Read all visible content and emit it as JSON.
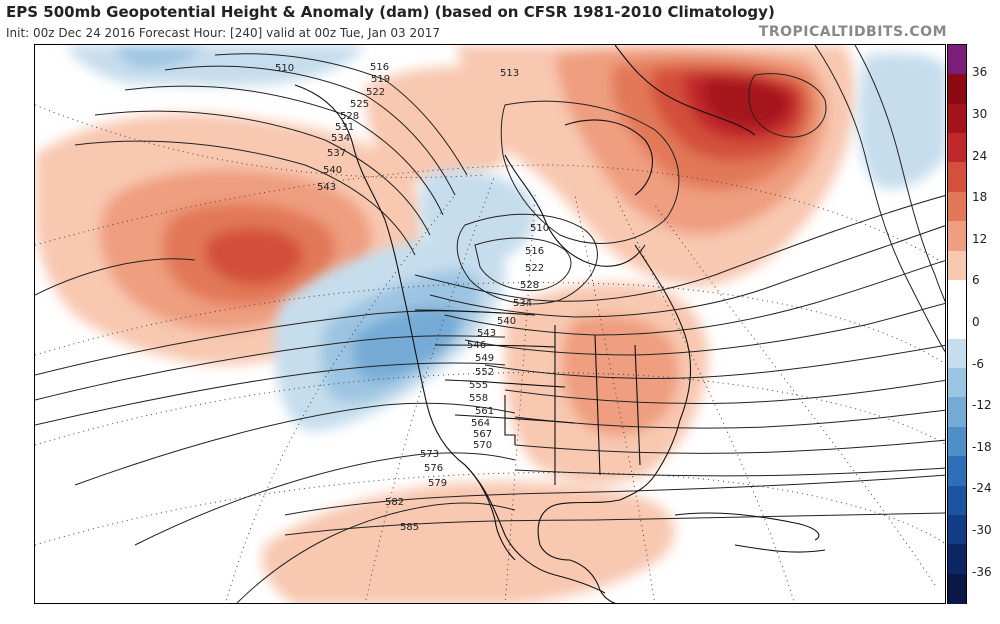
{
  "header": {
    "title": "EPS 500mb Geopotential Height & Anomaly (dam) (based on CFSR 1981-2010 Climatology)",
    "subtitle": "Init: 00z Dec 24 2016   Forecast Hour: [240]   valid at 00z Tue, Jan 03 2017",
    "brand": "TROPICALTIDBITS.COM"
  },
  "colorbar": {
    "ticks": [
      "36",
      "30",
      "24",
      "18",
      "12",
      "6",
      "0",
      "-6",
      "-12",
      "-18",
      "-24",
      "-30",
      "-36"
    ],
    "colors": [
      "#7b1e7a",
      "#8b0a14",
      "#a5141c",
      "#c0282b",
      "#d3503b",
      "#e27858",
      "#ef9e7f",
      "#f8c8b1",
      "#ffffff",
      "#ffffff",
      "#c6dded",
      "#9cc5e2",
      "#74abd6",
      "#4e8fc8",
      "#2e70b6",
      "#1b54a0",
      "#123c85",
      "#0c2764",
      "#0a1747"
    ]
  },
  "map": {
    "height_contour_labels": [
      "510",
      "513",
      "516",
      "519",
      "522",
      "525",
      "528",
      "531",
      "534",
      "537",
      "540",
      "543",
      "546",
      "549",
      "552",
      "555",
      "558",
      "561",
      "564",
      "567",
      "570",
      "573",
      "576",
      "579",
      "582",
      "585"
    ],
    "label_list_nw": [
      "510",
      "516",
      "519",
      "522",
      "525",
      "528",
      "531",
      "534",
      "537",
      "540",
      "543"
    ],
    "label_list_center": [
      "510",
      "516",
      "522",
      "528",
      "534",
      "540",
      "543",
      "546",
      "549",
      "552",
      "555",
      "558",
      "561",
      "564",
      "567",
      "570",
      "573",
      "576",
      "579",
      "582",
      "585"
    ],
    "label_513": "513"
  }
}
